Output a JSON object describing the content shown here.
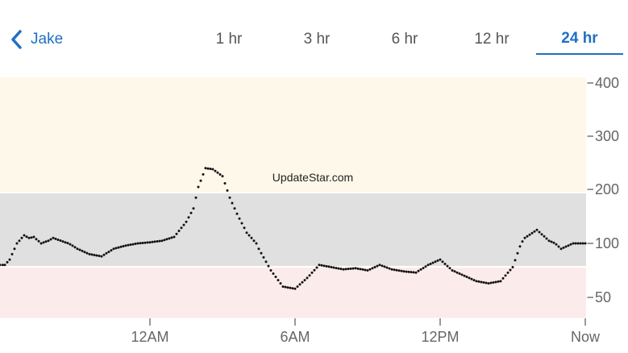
{
  "header": {
    "back_label": "Jake",
    "tabs": [
      {
        "label": "1 hr",
        "active": false
      },
      {
        "label": "3 hr",
        "active": false
      },
      {
        "label": "6 hr",
        "active": false
      },
      {
        "label": "12 hr",
        "active": false
      },
      {
        "label": "24 hr",
        "active": true
      }
    ]
  },
  "watermark": "UpdateStar.com",
  "colors": {
    "accent": "#1f6fc5",
    "high_band": "#fdf8ea",
    "target_band": "#e0e0e0",
    "low_band": "#fcebeb"
  },
  "chart_data": {
    "type": "scatter",
    "ylim": [
      20,
      410
    ],
    "y_ticks": [
      {
        "value": 400,
        "label": "400"
      },
      {
        "value": 300,
        "label": "300"
      },
      {
        "value": 200,
        "label": "200"
      },
      {
        "value": 100,
        "label": "100"
      },
      {
        "value": 50,
        "label": "50"
      }
    ],
    "xlim": [
      -8,
      24
    ],
    "x_ticks": [
      {
        "value": 1,
        "label": "12AM"
      },
      {
        "value": 7,
        "label": "6AM"
      },
      {
        "value": 13,
        "label": "12PM"
      },
      {
        "value": 19,
        "label": "Now"
      }
    ],
    "bands": [
      {
        "name": "high",
        "from": 200,
        "to": 410
      },
      {
        "name": "target",
        "from": 70,
        "to": 200
      },
      {
        "name": "low",
        "from": 20,
        "to": 70
      }
    ],
    "series": [
      {
        "x": [
          -5,
          -4.8,
          -4.5,
          -4.2,
          -4,
          -3.8,
          -3.5,
          -3.2,
          -3,
          -2.5,
          -2,
          -1.5,
          -1,
          -0.5,
          0,
          0.5,
          1,
          1.5,
          2,
          2.5,
          2.8,
          3,
          3.3,
          3.6,
          4,
          4.3,
          4.6,
          5,
          5.5,
          6,
          6.5,
          7,
          7.5,
          8,
          8.5,
          9,
          9.5,
          10,
          10.5,
          11,
          11.5,
          12,
          12.5,
          13,
          13.5,
          14,
          14.5,
          15,
          15.5,
          16,
          16.5,
          17,
          17.5,
          18,
          18.5,
          19
        ],
        "values": [
          80,
          85,
          100,
          115,
          110,
          112,
          100,
          105,
          110,
          102,
          95,
          90,
          88,
          95,
          98,
          100,
          102,
          105,
          112,
          140,
          165,
          205,
          240,
          238,
          225,
          185,
          155,
          120,
          95,
          75,
          60,
          58,
          68,
          80,
          78,
          76,
          77,
          75,
          80,
          76,
          74,
          73,
          80,
          85,
          75,
          70,
          65,
          63,
          65,
          78,
          110,
          125,
          105,
          95,
          100,
          100
        ]
      }
    ]
  }
}
